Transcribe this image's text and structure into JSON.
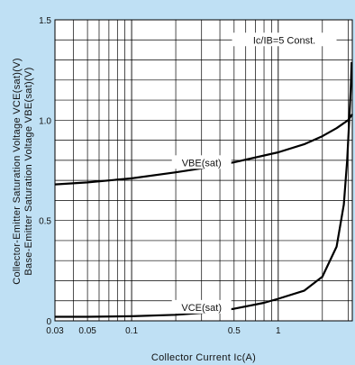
{
  "chart_data": {
    "type": "line",
    "title": "",
    "xlabel": "Collector Current Ic(A)",
    "ylabel_lines": [
      "Collector-Emitter Saturation Voltage VCE(sat)(V)",
      "Base-Emitter Saturation Voltage VBE(sat)(V)"
    ],
    "x_scale": "log",
    "xlim": [
      0.03,
      3.2
    ],
    "ylim": [
      0,
      1.5
    ],
    "grid": true,
    "x_ticks": [
      {
        "value": 0.03,
        "label": "0.03"
      },
      {
        "value": 0.05,
        "label": "0.05"
      },
      {
        "value": 0.1,
        "label": "0.1"
      },
      {
        "value": 0.5,
        "label": "0.5"
      },
      {
        "value": 1,
        "label": "1"
      }
    ],
    "y_ticks": [
      {
        "value": 0,
        "label": "0"
      },
      {
        "value": 0.5,
        "label": "0.5"
      },
      {
        "value": 1.0,
        "label": "1.0"
      },
      {
        "value": 1.5,
        "label": "1.5"
      }
    ],
    "condition_label": "Ic/IB=5 Const.",
    "series": [
      {
        "name": "VBE(sat)",
        "x": [
          0.03,
          0.05,
          0.1,
          0.2,
          0.3,
          0.5,
          1,
          1.5,
          2,
          2.5,
          3,
          3.2
        ],
        "y": [
          0.68,
          0.69,
          0.71,
          0.74,
          0.76,
          0.79,
          0.84,
          0.88,
          0.92,
          0.96,
          1.0,
          1.03
        ]
      },
      {
        "name": "VCE(sat)",
        "x": [
          0.03,
          0.05,
          0.1,
          0.2,
          0.3,
          0.5,
          0.8,
          1.0,
          1.5,
          2.0,
          2.5,
          2.8,
          2.95,
          3.05,
          3.12,
          3.17
        ],
        "y": [
          0.02,
          0.02,
          0.023,
          0.03,
          0.04,
          0.06,
          0.09,
          0.11,
          0.15,
          0.22,
          0.37,
          0.58,
          0.8,
          1.0,
          1.15,
          1.29
        ]
      }
    ]
  }
}
